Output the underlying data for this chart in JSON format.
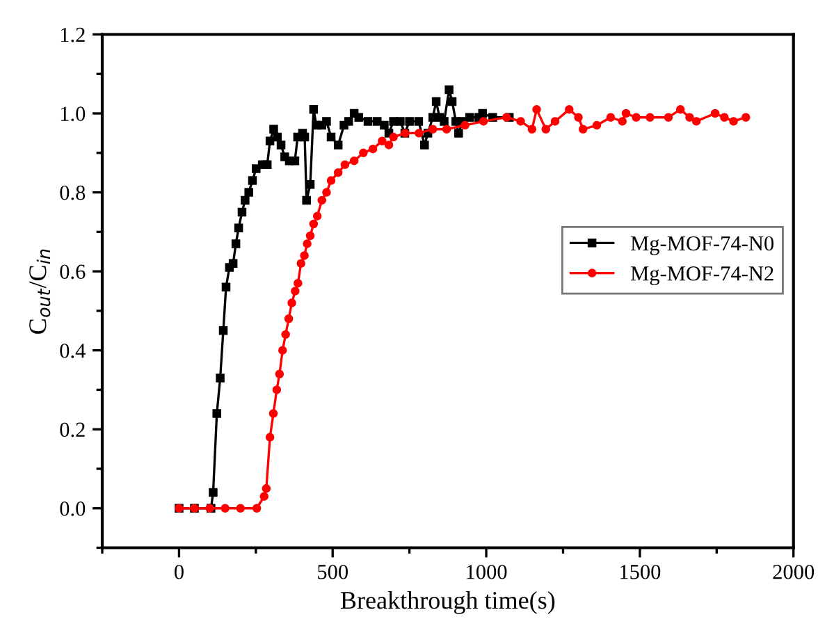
{
  "chart_data": {
    "type": "line",
    "xlabel": "Breakthrough time(s)",
    "ylabel": "C$_{out}$/C$_{in}$",
    "xlim": [
      -250,
      2000
    ],
    "xticks": [
      0,
      500,
      1000,
      1500,
      2000
    ],
    "ylim": [
      -0.1,
      1.2
    ],
    "yticks": [
      {
        "value": 0,
        "label": "0.0"
      },
      {
        "value": 0.2,
        "label": "0.2"
      },
      {
        "value": 0.4,
        "label": "0.4"
      },
      {
        "value": 0.6,
        "label": "0.6"
      },
      {
        "value": 0.8,
        "label": "0.8"
      },
      {
        "value": 1.0,
        "label": "1.0"
      },
      {
        "value": 1.2,
        "label": "1.2"
      }
    ],
    "grid": false,
    "legend": "center right",
    "series": [
      {
        "name": "Mg-MOF-74-N0",
        "color": "#000000",
        "marker": "square",
        "x": [
          0,
          50,
          104,
          111,
          123,
          134,
          144,
          153,
          164,
          176,
          185,
          194,
          205,
          215,
          227,
          239,
          251,
          271,
          287,
          296,
          308,
          320,
          332,
          344,
          359,
          377,
          386,
          402,
          409,
          415,
          427,
          438,
          447,
          465,
          480,
          495,
          518,
          537,
          552,
          570,
          585,
          615,
          645,
          668,
          683,
          698,
          720,
          735,
          750,
          780,
          799,
          810,
          826,
          837,
          848,
          863,
          879,
          889,
          901,
          910,
          923,
          946,
          976,
          988,
          1021,
          1075
        ],
        "values": [
          0,
          0,
          0,
          0.04,
          0.24,
          0.33,
          0.45,
          0.56,
          0.61,
          0.62,
          0.67,
          0.71,
          0.75,
          0.78,
          0.8,
          0.83,
          0.86,
          0.87,
          0.87,
          0.93,
          0.96,
          0.94,
          0.92,
          0.89,
          0.88,
          0.88,
          0.94,
          0.95,
          0.94,
          0.78,
          0.82,
          1.01,
          0.97,
          0.97,
          0.98,
          0.94,
          0.92,
          0.97,
          0.98,
          1.0,
          0.99,
          0.98,
          0.98,
          0.97,
          0.95,
          0.98,
          0.98,
          0.95,
          0.98,
          0.98,
          0.92,
          0.95,
          0.99,
          1.03,
          0.99,
          0.98,
          1.06,
          1.03,
          0.98,
          0.95,
          0.98,
          0.99,
          0.99,
          1.0,
          0.99,
          0.99
        ]
      },
      {
        "name": "Mg-MOF-74-N2",
        "color": "#ff0000",
        "marker": "circle",
        "x": [
          0,
          50,
          100,
          150,
          200,
          253,
          277,
          284,
          296,
          307,
          318,
          327,
          337,
          347,
          357,
          367,
          378,
          387,
          397,
          408,
          417,
          427,
          438,
          450,
          465,
          480,
          495,
          518,
          540,
          570,
          600,
          631,
          661,
          683,
          698,
          736,
          781,
          826,
          871,
          931,
          991,
          1066,
          1112,
          1149,
          1164,
          1194,
          1224,
          1270,
          1300,
          1315,
          1360,
          1405,
          1443,
          1455,
          1488,
          1533,
          1593,
          1632,
          1662,
          1684,
          1745,
          1775,
          1805,
          1845
        ],
        "values": [
          0,
          0,
          0,
          0,
          0,
          0,
          0.03,
          0.05,
          0.18,
          0.24,
          0.3,
          0.34,
          0.4,
          0.44,
          0.48,
          0.52,
          0.55,
          0.57,
          0.62,
          0.64,
          0.67,
          0.69,
          0.72,
          0.74,
          0.78,
          0.8,
          0.83,
          0.85,
          0.87,
          0.88,
          0.9,
          0.91,
          0.93,
          0.92,
          0.94,
          0.95,
          0.95,
          0.96,
          0.96,
          0.97,
          0.98,
          0.99,
          0.98,
          0.96,
          1.01,
          0.96,
          0.98,
          1.01,
          0.99,
          0.96,
          0.97,
          0.99,
          0.98,
          1.0,
          0.99,
          0.99,
          0.99,
          1.01,
          0.99,
          0.98,
          1.0,
          0.99,
          0.98,
          0.99
        ]
      }
    ]
  }
}
